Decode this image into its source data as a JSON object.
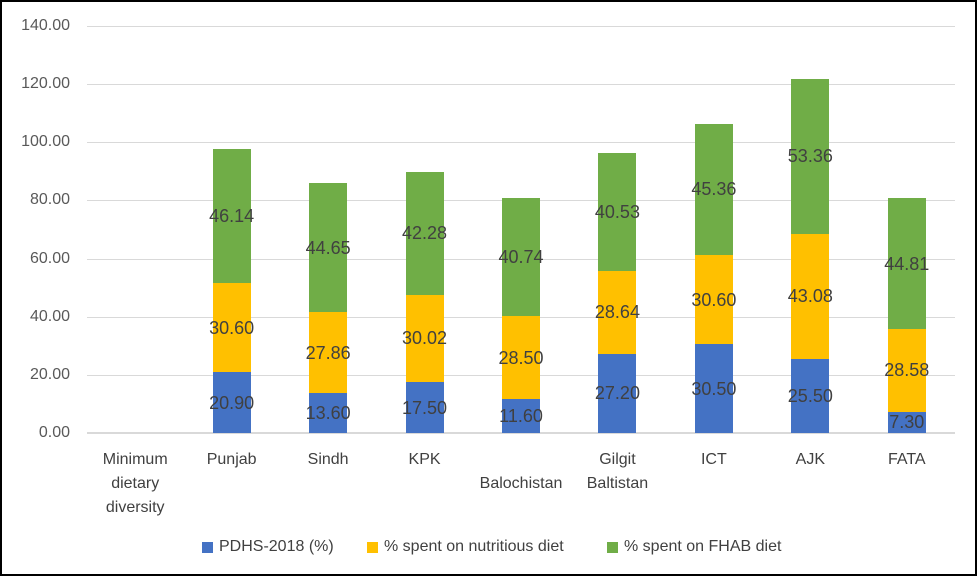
{
  "chart_data": {
    "type": "bar",
    "stacked": true,
    "categories": [
      "Minimum dietary diversity",
      "Punjab",
      "Sindh",
      "KPK",
      "Balochistan",
      "Gilgit Baltistan",
      "ICT",
      "AJK",
      "FATA"
    ],
    "series": [
      {
        "name": "PDHS-2018 (%)",
        "color": "#4472C4",
        "values": [
          null,
          20.9,
          13.6,
          17.5,
          11.6,
          27.2,
          30.5,
          25.5,
          7.3
        ]
      },
      {
        "name": "% spent on nutritious diet",
        "color": "#FFC000",
        "values": [
          null,
          30.6,
          27.86,
          30.02,
          28.5,
          28.64,
          30.6,
          43.08,
          28.58
        ]
      },
      {
        "name": "% spent on FHAB diet",
        "color": "#70AD47",
        "values": [
          null,
          46.14,
          44.65,
          42.28,
          40.74,
          40.53,
          45.36,
          53.36,
          44.81
        ]
      }
    ],
    "ylim": [
      0,
      140
    ],
    "ytick_step": 20,
    "ytick_labels": [
      "0.00",
      "20.00",
      "40.00",
      "60.00",
      "80.00",
      "100.00",
      "120.00",
      "140.00"
    ],
    "grid": true,
    "legend_position": "bottom",
    "data_labels": true
  }
}
